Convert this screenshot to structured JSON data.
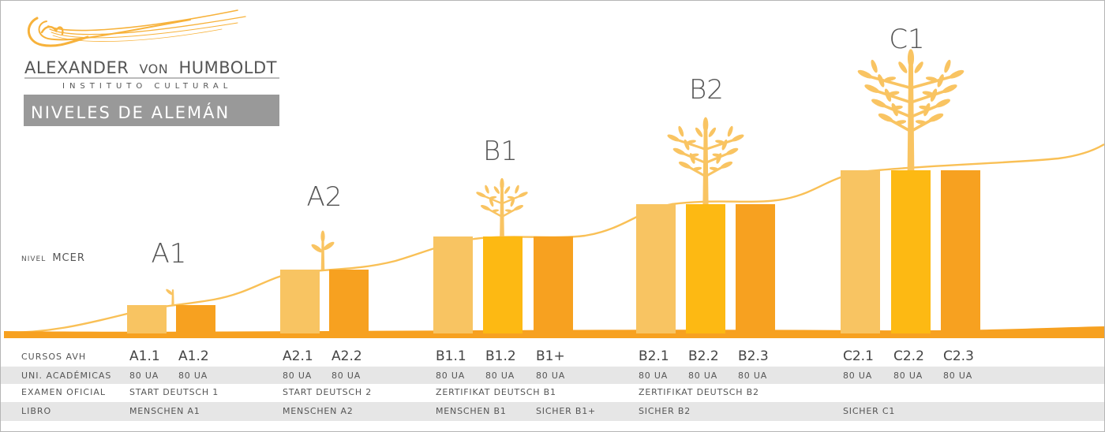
{
  "logo": {
    "name_main": "ALEXANDER",
    "name_von": "VON",
    "name_last": "HUMBOLDT",
    "subtitle": "INSTITUTO CULTURAL",
    "badge": "NIVELES DE ALEMÁN"
  },
  "nivel_label": {
    "prefix": "NIVEL",
    "suffix": "MCER"
  },
  "levels": [
    {
      "label": "A1",
      "tree_stage": 1
    },
    {
      "label": "A2",
      "tree_stage": 2
    },
    {
      "label": "B1",
      "tree_stage": 3
    },
    {
      "label": "B2",
      "tree_stage": 4
    },
    {
      "label": "C1",
      "tree_stage": 5
    }
  ],
  "table": {
    "row_labels": [
      "CURSOS AVH",
      "UNI. ACADÉMICAS",
      "EXAMEN OFICIAL",
      "LIBRO"
    ],
    "courses": [
      {
        "name": "A1.1",
        "units": "80 UA",
        "level": 0,
        "shade": "light"
      },
      {
        "name": "A1.2",
        "units": "80 UA",
        "level": 0,
        "shade": "dark"
      },
      {
        "name": "A2.1",
        "units": "80 UA",
        "level": 1,
        "shade": "light"
      },
      {
        "name": "A2.2",
        "units": "80 UA",
        "level": 1,
        "shade": "dark"
      },
      {
        "name": "B1.1",
        "units": "80 UA",
        "level": 2,
        "shade": "light"
      },
      {
        "name": "B1.2",
        "units": "80 UA",
        "level": 2,
        "shade": "mid"
      },
      {
        "name": "B1+",
        "units": "80 UA",
        "level": 2,
        "shade": "dark"
      },
      {
        "name": "B2.1",
        "units": "80 UA",
        "level": 3,
        "shade": "light"
      },
      {
        "name": "B2.2",
        "units": "80 UA",
        "level": 3,
        "shade": "mid"
      },
      {
        "name": "B2.3",
        "units": "80 UA",
        "level": 3,
        "shade": "dark"
      },
      {
        "name": "C2.1",
        "units": "80 UA",
        "level": 4,
        "shade": "light"
      },
      {
        "name": "C2.2",
        "units": "80 UA",
        "level": 4,
        "shade": "mid"
      },
      {
        "name": "C2.3",
        "units": "80 UA",
        "level": 4,
        "shade": "dark"
      }
    ],
    "exams": [
      {
        "text": "START DEUTSCH 1",
        "course": 0
      },
      {
        "text": "START DEUTSCH 2",
        "course": 2
      },
      {
        "text": "ZERTIFIKAT DEUTSCH B1",
        "course": 4
      },
      {
        "text": "ZERTIFIKAT DEUTSCH B2",
        "course": 7
      }
    ],
    "books": [
      {
        "text": "MENSCHEN A1",
        "course": 0
      },
      {
        "text": "MENSCHEN A2",
        "course": 2
      },
      {
        "text": "MENSCHEN B1",
        "course": 4
      },
      {
        "text": "SICHER B1+",
        "course": 6
      },
      {
        "text": "SICHER B2",
        "course": 7
      },
      {
        "text": "SICHER C1",
        "course": 10
      }
    ]
  },
  "colors": {
    "light": "#f8c462",
    "mid": "#fdb913",
    "dark": "#f7a120",
    "curve": "#f9c056",
    "tree": "#f9c462",
    "badge": "#999999",
    "row_bg": "#e6e6e6",
    "text": "#555555"
  }
}
